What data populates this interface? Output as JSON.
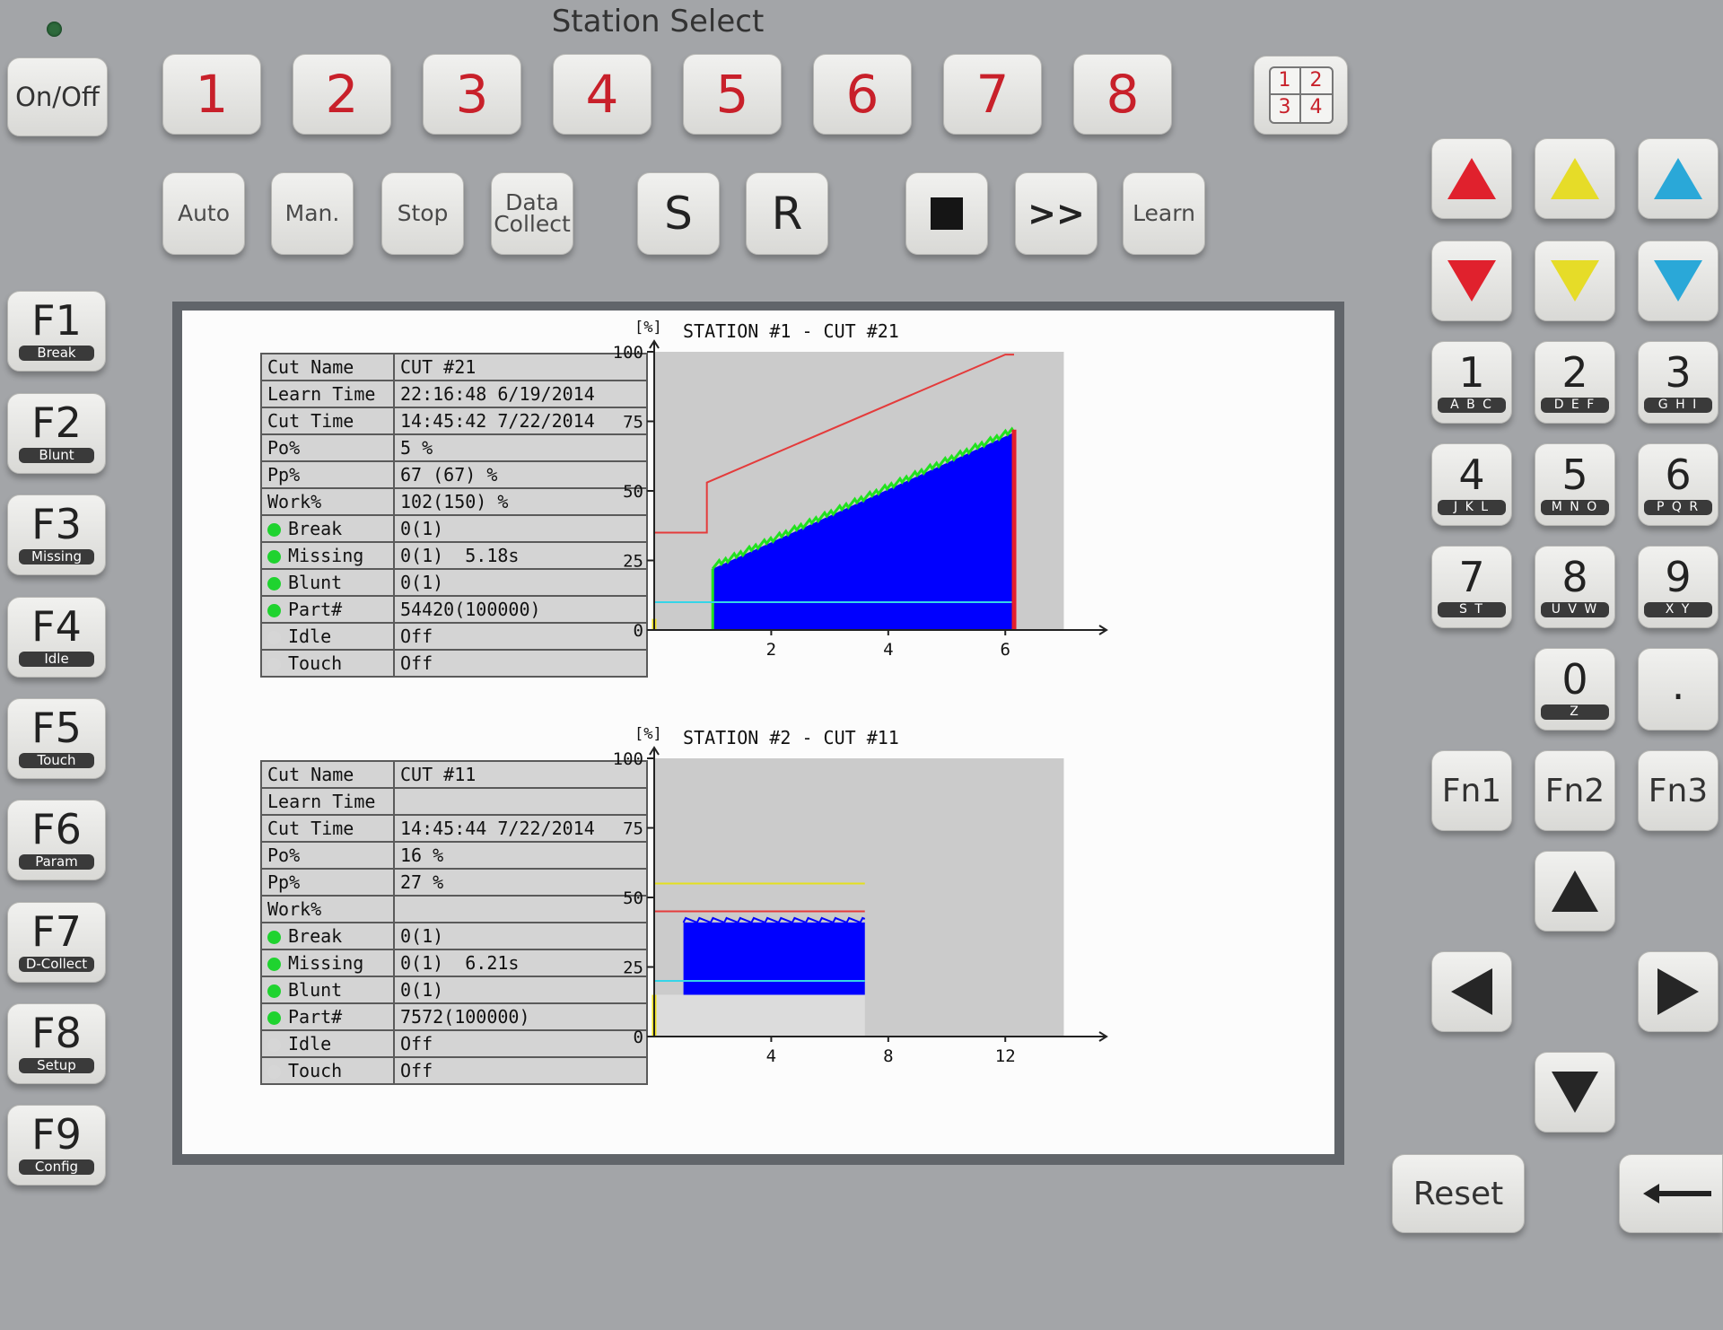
{
  "panel": {
    "title": "Station Select",
    "power_button": "On/Off",
    "station_buttons": [
      "1",
      "2",
      "3",
      "4",
      "5",
      "6",
      "7",
      "8"
    ],
    "quad_view": [
      "1",
      "2",
      "3",
      "4"
    ],
    "mode_buttons": [
      "Auto",
      "Man.",
      "Stop",
      "Data Collect"
    ],
    "set_button": "S",
    "reset_button_small": "R",
    "stop_square_button": "■",
    "forward_button": ">>",
    "learn_button": "Learn"
  },
  "function_keys": [
    {
      "label": "F1",
      "sub": "Break"
    },
    {
      "label": "F2",
      "sub": "Blunt"
    },
    {
      "label": "F3",
      "sub": "Missing"
    },
    {
      "label": "F4",
      "sub": "Idle"
    },
    {
      "label": "F5",
      "sub": "Touch"
    },
    {
      "label": "F6",
      "sub": "Param"
    },
    {
      "label": "F7",
      "sub": "D-Collect"
    },
    {
      "label": "F8",
      "sub": "Setup"
    },
    {
      "label": "F9",
      "sub": "Config"
    }
  ],
  "color_keys": [
    {
      "icon": "red-up-arrow-icon",
      "color": "#e0212d"
    },
    {
      "icon": "yellow-up-arrow-icon",
      "color": "#e6dc28"
    },
    {
      "icon": "blue-up-arrow-icon",
      "color": "#2aa8d8"
    },
    {
      "icon": "red-down-arrow-icon",
      "color": "#e0212d"
    },
    {
      "icon": "yellow-down-arrow-icon",
      "color": "#e6dc28"
    },
    {
      "icon": "blue-down-arrow-icon",
      "color": "#2aa8d8"
    }
  ],
  "numpad": [
    {
      "label": "1",
      "sub": "A B C"
    },
    {
      "label": "2",
      "sub": "D E F"
    },
    {
      "label": "3",
      "sub": "G H I"
    },
    {
      "label": "4",
      "sub": "J K L"
    },
    {
      "label": "5",
      "sub": "M N O"
    },
    {
      "label": "6",
      "sub": "P Q R"
    },
    {
      "label": "7",
      "sub": "S T"
    },
    {
      "label": "8",
      "sub": "U V W"
    },
    {
      "label": "9",
      "sub": "X Y"
    },
    {
      "label": "0",
      "sub": "Z"
    },
    {
      "label": ".",
      "sub": ""
    }
  ],
  "fn_keys": [
    "Fn1",
    "Fn2",
    "Fn3"
  ],
  "reset_key": "Reset",
  "station1": {
    "table": [
      {
        "key": "Cut Name",
        "value": "CUT #21"
      },
      {
        "key": "Learn Time",
        "value": "22:16:48 6/19/2014"
      },
      {
        "key": "Cut Time",
        "value": "14:45:42 7/22/2014"
      },
      {
        "key": "Po%",
        "value": "5 %"
      },
      {
        "key": "Pp%",
        "value": "67 (67) %"
      },
      {
        "key": "Work%",
        "value": "102(150) %"
      },
      {
        "key": "Break",
        "value": "0(1)",
        "led": "on"
      },
      {
        "key": "Missing",
        "value": "0(1)  5.18s",
        "led": "on"
      },
      {
        "key": "Blunt",
        "value": "0(1)",
        "led": "on"
      },
      {
        "key": "Part#",
        "value": "54420(100000)",
        "led": "on"
      },
      {
        "key": "Idle",
        "value": "Off",
        "led": "off"
      },
      {
        "key": "Touch",
        "value": "Off",
        "led": "off"
      }
    ]
  },
  "station2": {
    "table": [
      {
        "key": "Cut Name",
        "value": "CUT #11"
      },
      {
        "key": "Learn Time",
        "value": ""
      },
      {
        "key": "Cut Time",
        "value": "14:45:44 7/22/2014"
      },
      {
        "key": "Po%",
        "value": "16 %"
      },
      {
        "key": "Pp%",
        "value": "27 %"
      },
      {
        "key": "Work%",
        "value": ""
      },
      {
        "key": "Break",
        "value": "0(1)",
        "led": "on"
      },
      {
        "key": "Missing",
        "value": "0(1)  6.21s",
        "led": "on"
      },
      {
        "key": "Blunt",
        "value": "0(1)",
        "led": "on"
      },
      {
        "key": "Part#",
        "value": "7572(100000)",
        "led": "on"
      },
      {
        "key": "Idle",
        "value": "Off",
        "led": "off"
      },
      {
        "key": "Touch",
        "value": "Off",
        "led": "off"
      }
    ]
  },
  "chart_data": [
    {
      "type": "area",
      "title": "STATION #1 - CUT #21",
      "ylabel": "[%]",
      "xlabel": "",
      "xlim": [
        0,
        7.3
      ],
      "ylim": [
        0,
        100
      ],
      "x_ticks": [
        "2",
        "4",
        "6"
      ],
      "x_tick_values": [
        2,
        4,
        6
      ],
      "y_ticks": [
        "0",
        "25",
        "50",
        "75",
        "100"
      ],
      "y_tick_values": [
        0,
        25,
        50,
        75,
        100
      ],
      "series": [
        {
          "style": "filled",
          "color": "#0000ff",
          "edge_color": "#21e21f",
          "x": [
            1.0,
            6.15
          ],
          "y": [
            22,
            71
          ]
        },
        {
          "style": "line",
          "color": "#e43b3b",
          "x": [
            0,
            0.9,
            0.9,
            6,
            6.15
          ],
          "y": [
            35,
            35,
            53,
            99,
            99
          ]
        },
        {
          "style": "line",
          "color": "#35d5e8",
          "x": [
            0,
            6.15
          ],
          "y": [
            10,
            10
          ]
        },
        {
          "style": "vline",
          "color": "#e41f2c",
          "x": [
            6.15,
            6.15
          ],
          "y": [
            0,
            72
          ]
        },
        {
          "style": "vline",
          "color": "#f0e21e",
          "x": [
            0,
            0
          ],
          "y": [
            0,
            4
          ]
        }
      ],
      "plot_background_until": 7
    },
    {
      "type": "area",
      "title": "STATION #2 - CUT #11",
      "ylabel": "[%]",
      "xlabel": "",
      "xlim": [
        0,
        14.6
      ],
      "ylim": [
        0,
        100
      ],
      "x_ticks": [
        "4",
        "8",
        "12"
      ],
      "x_tick_values": [
        4,
        8,
        12
      ],
      "y_ticks": [
        "0",
        "25",
        "50",
        "75",
        "100"
      ],
      "y_tick_values": [
        0,
        25,
        50,
        75,
        100
      ],
      "series": [
        {
          "style": "block",
          "color": "#0000ff",
          "x": [
            1.0,
            7.2
          ],
          "y_bottom": 15,
          "y_top": 41
        },
        {
          "style": "line",
          "color": "#e4e01e",
          "x": [
            0,
            7.2
          ],
          "y": [
            55,
            55
          ]
        },
        {
          "style": "line",
          "color": "#e43b3b",
          "x": [
            0,
            7.2
          ],
          "y": [
            45,
            45
          ]
        },
        {
          "style": "line",
          "color": "#35d5e8",
          "x": [
            0,
            7.2
          ],
          "y": [
            20,
            20
          ]
        },
        {
          "style": "vline",
          "color": "#f0e21e",
          "x": [
            0,
            0
          ],
          "y": [
            0,
            15
          ]
        }
      ],
      "plot_background_until": 14,
      "light_region_until": 7.2
    }
  ]
}
